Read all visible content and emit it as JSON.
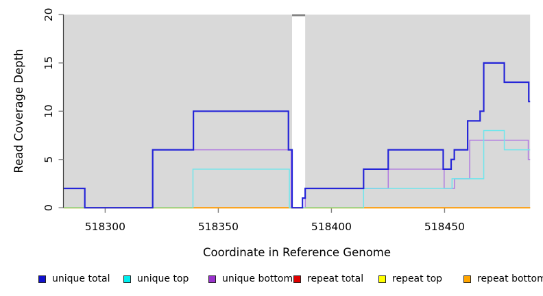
{
  "chart_data": {
    "type": "line",
    "subtype": "step-coverage",
    "title": "",
    "xlabel": "Coordinate in Reference Genome",
    "ylabel": "Read Coverage Depth",
    "xlim": [
      518281.7,
      518487.8
    ],
    "ylim": [
      0,
      20
    ],
    "xticks": [
      518300,
      518350,
      518400,
      518450
    ],
    "yticks": [
      0,
      5,
      10,
      15,
      20
    ],
    "grid": false,
    "legend_position": "bottom",
    "plot_bg_color": "#d9d9d9",
    "gap_band": {
      "x_start": 518382.6,
      "x_end": 518388.4,
      "fill": "#ffffff",
      "top_line_color": "#7d7d7d"
    },
    "baseline_blend": {
      "comment_color_where_unique_top_sits_at_zero": "#93d78f",
      "level": 0,
      "ranges": [
        [
          518281.7,
          518338.8
        ],
        [
          518388.4,
          518414.2
        ]
      ]
    },
    "series": [
      {
        "label": "unique total",
        "legend_color": "#1111cc",
        "line_color": "#2525d8",
        "line_width": 2.2,
        "steps": [
          [
            518281.7,
            2
          ],
          [
            518291,
            0
          ],
          [
            518321,
            6
          ],
          [
            518339,
            10
          ],
          [
            518381,
            6
          ],
          [
            518382.6,
            0
          ],
          [
            518387.2,
            1
          ],
          [
            518388.4,
            2
          ],
          [
            518414.2,
            4
          ],
          [
            518425.1,
            6
          ],
          [
            518449.4,
            4
          ],
          [
            518452.9,
            5
          ],
          [
            518454.3,
            6
          ],
          [
            518460.2,
            9
          ],
          [
            518465.7,
            10
          ],
          [
            518467.3,
            15
          ],
          [
            518476.4,
            13
          ],
          [
            518487.2,
            11
          ]
        ]
      },
      {
        "label": "unique top",
        "legend_color": "#00eeee",
        "line_color": "#6fe6ec",
        "line_width": 1.5,
        "steps": [
          [
            518281.7,
            0
          ],
          [
            518338.8,
            4
          ],
          [
            518381.4,
            0
          ],
          [
            518414.2,
            2
          ],
          [
            518453.3,
            3
          ],
          [
            518467.3,
            8
          ],
          [
            518476.4,
            6
          ]
        ]
      },
      {
        "label": "unique bottom",
        "legend_color": "#9932cc",
        "line_color": "#b07ae0",
        "line_width": 1.5,
        "steps": [
          [
            518281.7,
            0
          ],
          [
            518321,
            6
          ],
          [
            518382.2,
            0
          ],
          [
            518388.4,
            2
          ],
          [
            518425.1,
            4
          ],
          [
            518449.8,
            2
          ],
          [
            518454.4,
            3
          ],
          [
            518461.1,
            7
          ],
          [
            518487,
            5
          ]
        ]
      },
      {
        "label": "repeat total",
        "legend_color": "#dd0000",
        "line_color": "#dd0000",
        "line_width": 1.5,
        "steps": [
          [
            518281.7,
            0
          ]
        ]
      },
      {
        "label": "repeat top",
        "legend_color": "#ffff00",
        "line_color": "#ffff00",
        "line_width": 1.5,
        "steps": [
          [
            518281.7,
            0
          ]
        ]
      },
      {
        "label": "repeat bottom",
        "legend_color": "#ffa500",
        "line_color": "#ff9900",
        "line_width": 2,
        "steps": [
          [
            518281.7,
            0
          ]
        ]
      }
    ]
  },
  "legend": {
    "items": [
      {
        "label": "unique total"
      },
      {
        "label": "unique top"
      },
      {
        "label": "unique bottom"
      },
      {
        "label": "repeat total"
      },
      {
        "label": "repeat top"
      },
      {
        "label": "repeat bottom"
      }
    ]
  }
}
